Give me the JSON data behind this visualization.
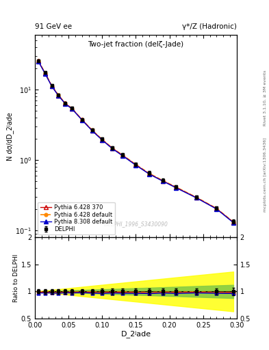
{
  "title_main": "Two-jet fraction (delζ-Jade)",
  "header_left": "91 GeV ee",
  "header_right": "γ*/Z (Hadronic)",
  "ylabel_main": "N dσ/dD_2ʲade",
  "ylabel_ratio": "Ratio to DELPHI",
  "xlabel": "D_2ʲade",
  "right_label_top": "Rivet 3.1.10, ≥ 3M events",
  "right_label_bot": "mcplots.cern.ch [arXiv:1306.3436]",
  "watermark": "DELPHI_1996_S3430090",
  "x_data": [
    0.005,
    0.015,
    0.025,
    0.035,
    0.045,
    0.055,
    0.07,
    0.085,
    0.1,
    0.115,
    0.13,
    0.15,
    0.17,
    0.19,
    0.21,
    0.24,
    0.27,
    0.295
  ],
  "data_DELPHI": [
    26.0,
    17.5,
    11.5,
    8.5,
    6.5,
    5.5,
    3.8,
    2.7,
    2.0,
    1.5,
    1.2,
    0.88,
    0.66,
    0.52,
    0.42,
    0.3,
    0.21,
    0.135
  ],
  "data_py6_370": [
    25.5,
    17.2,
    11.3,
    8.3,
    6.4,
    5.4,
    3.75,
    2.65,
    1.95,
    1.48,
    1.18,
    0.86,
    0.64,
    0.51,
    0.41,
    0.295,
    0.205,
    0.132
  ],
  "data_py6_default": [
    25.8,
    17.4,
    11.4,
    8.4,
    6.45,
    5.45,
    3.77,
    2.68,
    1.97,
    1.49,
    1.19,
    0.87,
    0.65,
    0.515,
    0.415,
    0.298,
    0.207,
    0.133
  ],
  "data_py8_default": [
    25.3,
    17.0,
    11.2,
    8.2,
    6.35,
    5.35,
    3.72,
    2.62,
    1.93,
    1.46,
    1.16,
    0.85,
    0.635,
    0.505,
    0.405,
    0.292,
    0.203,
    0.13
  ],
  "err_DELPHI": [
    1.0,
    0.8,
    0.5,
    0.4,
    0.3,
    0.25,
    0.18,
    0.13,
    0.1,
    0.08,
    0.06,
    0.05,
    0.04,
    0.03,
    0.025,
    0.018,
    0.013,
    0.009
  ],
  "color_DELPHI": "#000000",
  "color_py6_370": "#cc0000",
  "color_py6_default": "#ff8800",
  "color_py8_default": "#0000cc",
  "xlim": [
    0.0,
    0.3
  ],
  "ylim_main": [
    0.08,
    60.0
  ],
  "ylim_ratio": [
    0.5,
    2.0
  ],
  "ratio_err_band_green": 0.05,
  "ratio_err_band_yellow": 0.15
}
